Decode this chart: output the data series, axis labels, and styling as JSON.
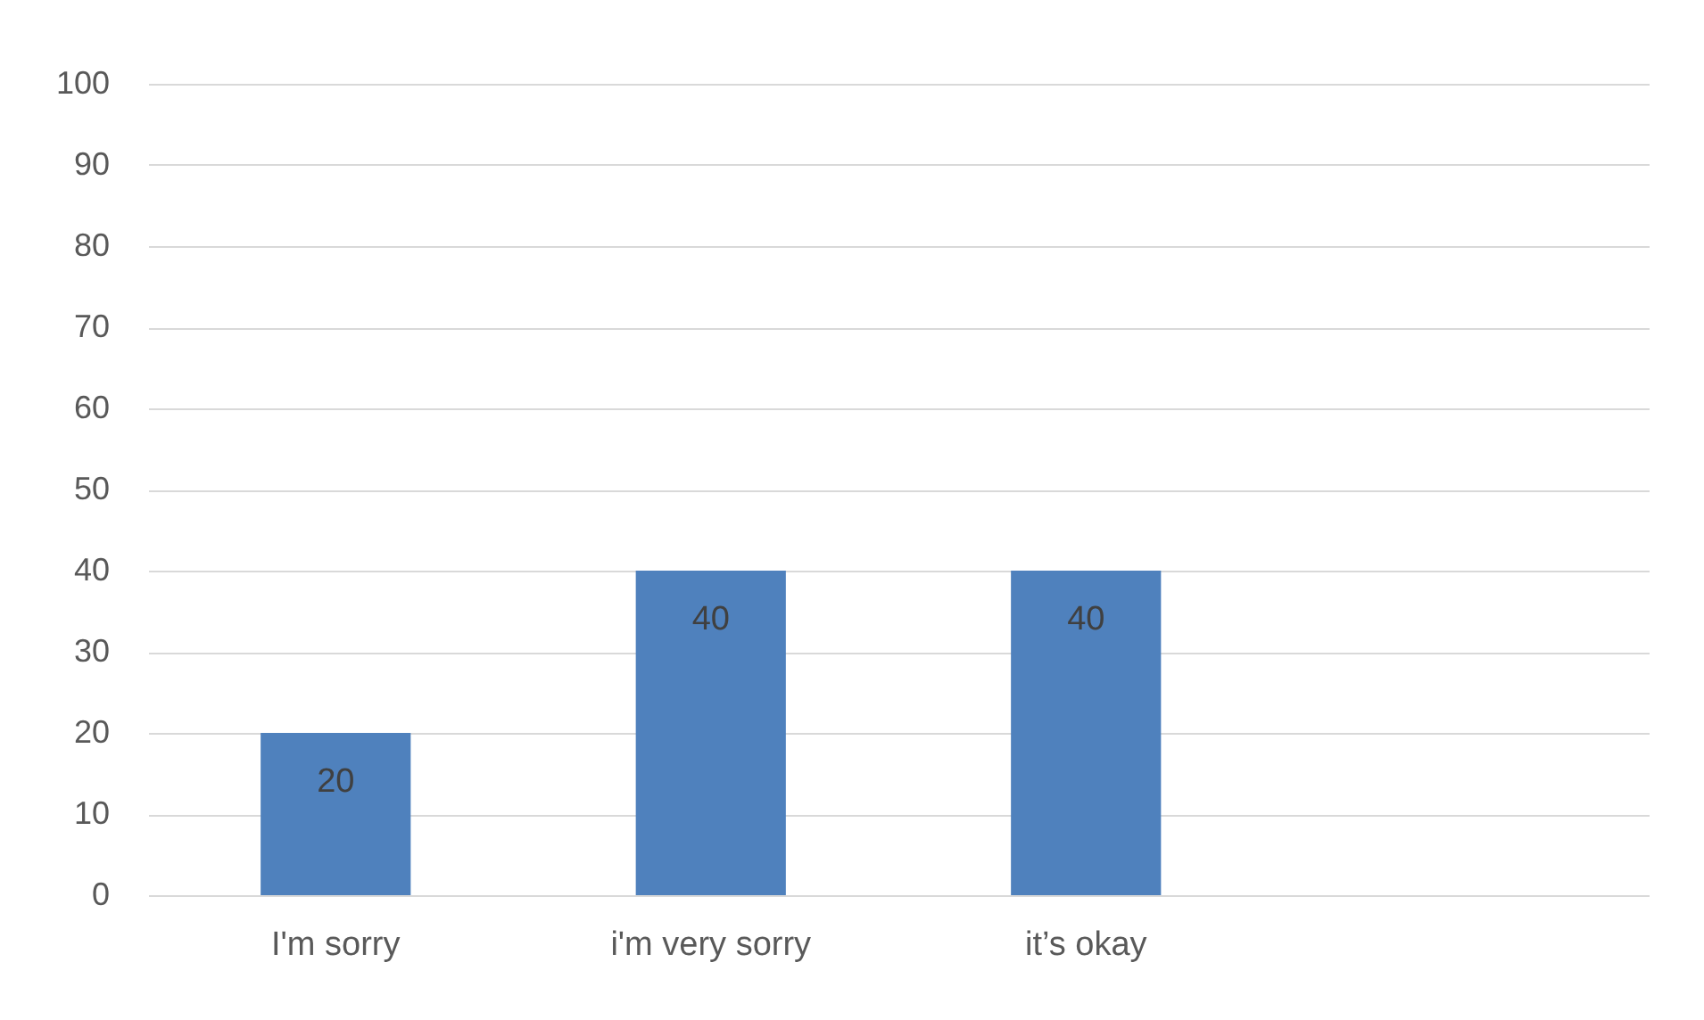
{
  "chart_data": {
    "type": "bar",
    "categories": [
      "I'm sorry",
      "i'm very sorry",
      "it’s okay",
      null
    ],
    "values": [
      20,
      40,
      40,
      null
    ],
    "color": "#4f81bd",
    "ylim": [
      0,
      100
    ],
    "yticks": [
      0,
      10,
      20,
      30,
      40,
      50,
      60,
      70,
      80,
      90,
      100
    ],
    "grid": "y",
    "data_labels": true
  }
}
